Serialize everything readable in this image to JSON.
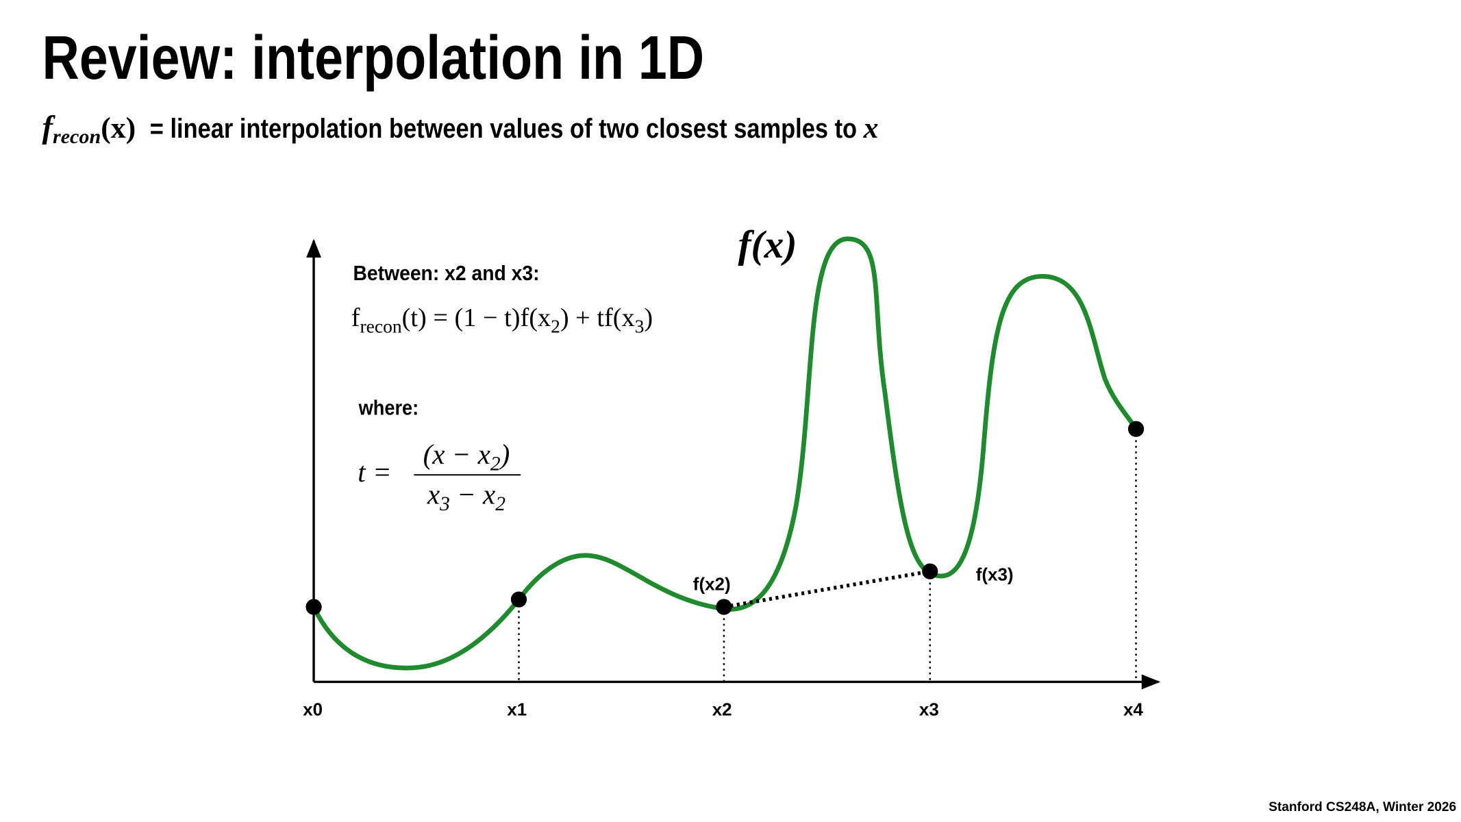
{
  "header": {
    "title": "Review: interpolation in 1D"
  },
  "subtitle": {
    "function": "f",
    "subscript": "recon",
    "argument": "(x)",
    "text": "= linear interpolation between values of two closest samples to",
    "variable": "x"
  },
  "diagram": {
    "curve_label": "f(x)",
    "between_label": "Between: x2 and x3:",
    "formula_reconstruction": [
      {
        "text": "f",
        "sub": false
      },
      {
        "text": "recon",
        "sub": true
      },
      {
        "text": "(t) = (1 − t)f(x",
        "sub": false
      },
      {
        "text": "2",
        "sub": true
      },
      {
        "text": ") + tf(x",
        "sub": false
      },
      {
        "text": "3",
        "sub": true
      },
      {
        "text": ")",
        "sub": false
      }
    ],
    "where_label": "where:",
    "formula_t": {
      "lhs": "t =",
      "numerator": [
        {
          "text": "(x − x",
          "sub": false
        },
        {
          "text": "2",
          "sub": true
        },
        {
          "text": ")",
          "sub": false
        }
      ],
      "denominator": [
        {
          "text": "x",
          "sub": false
        },
        {
          "text": "3",
          "sub": true
        },
        {
          "text": " − x",
          "sub": false
        },
        {
          "text": "2",
          "sub": true
        }
      ]
    },
    "point_labels": [
      "f(x2)",
      "f(x3)"
    ],
    "axis_labels": [
      "x0",
      "x1",
      "x2",
      "x3",
      "x4"
    ]
  },
  "footer": {
    "credit": "Stanford CS248A, Winter 2026"
  }
}
